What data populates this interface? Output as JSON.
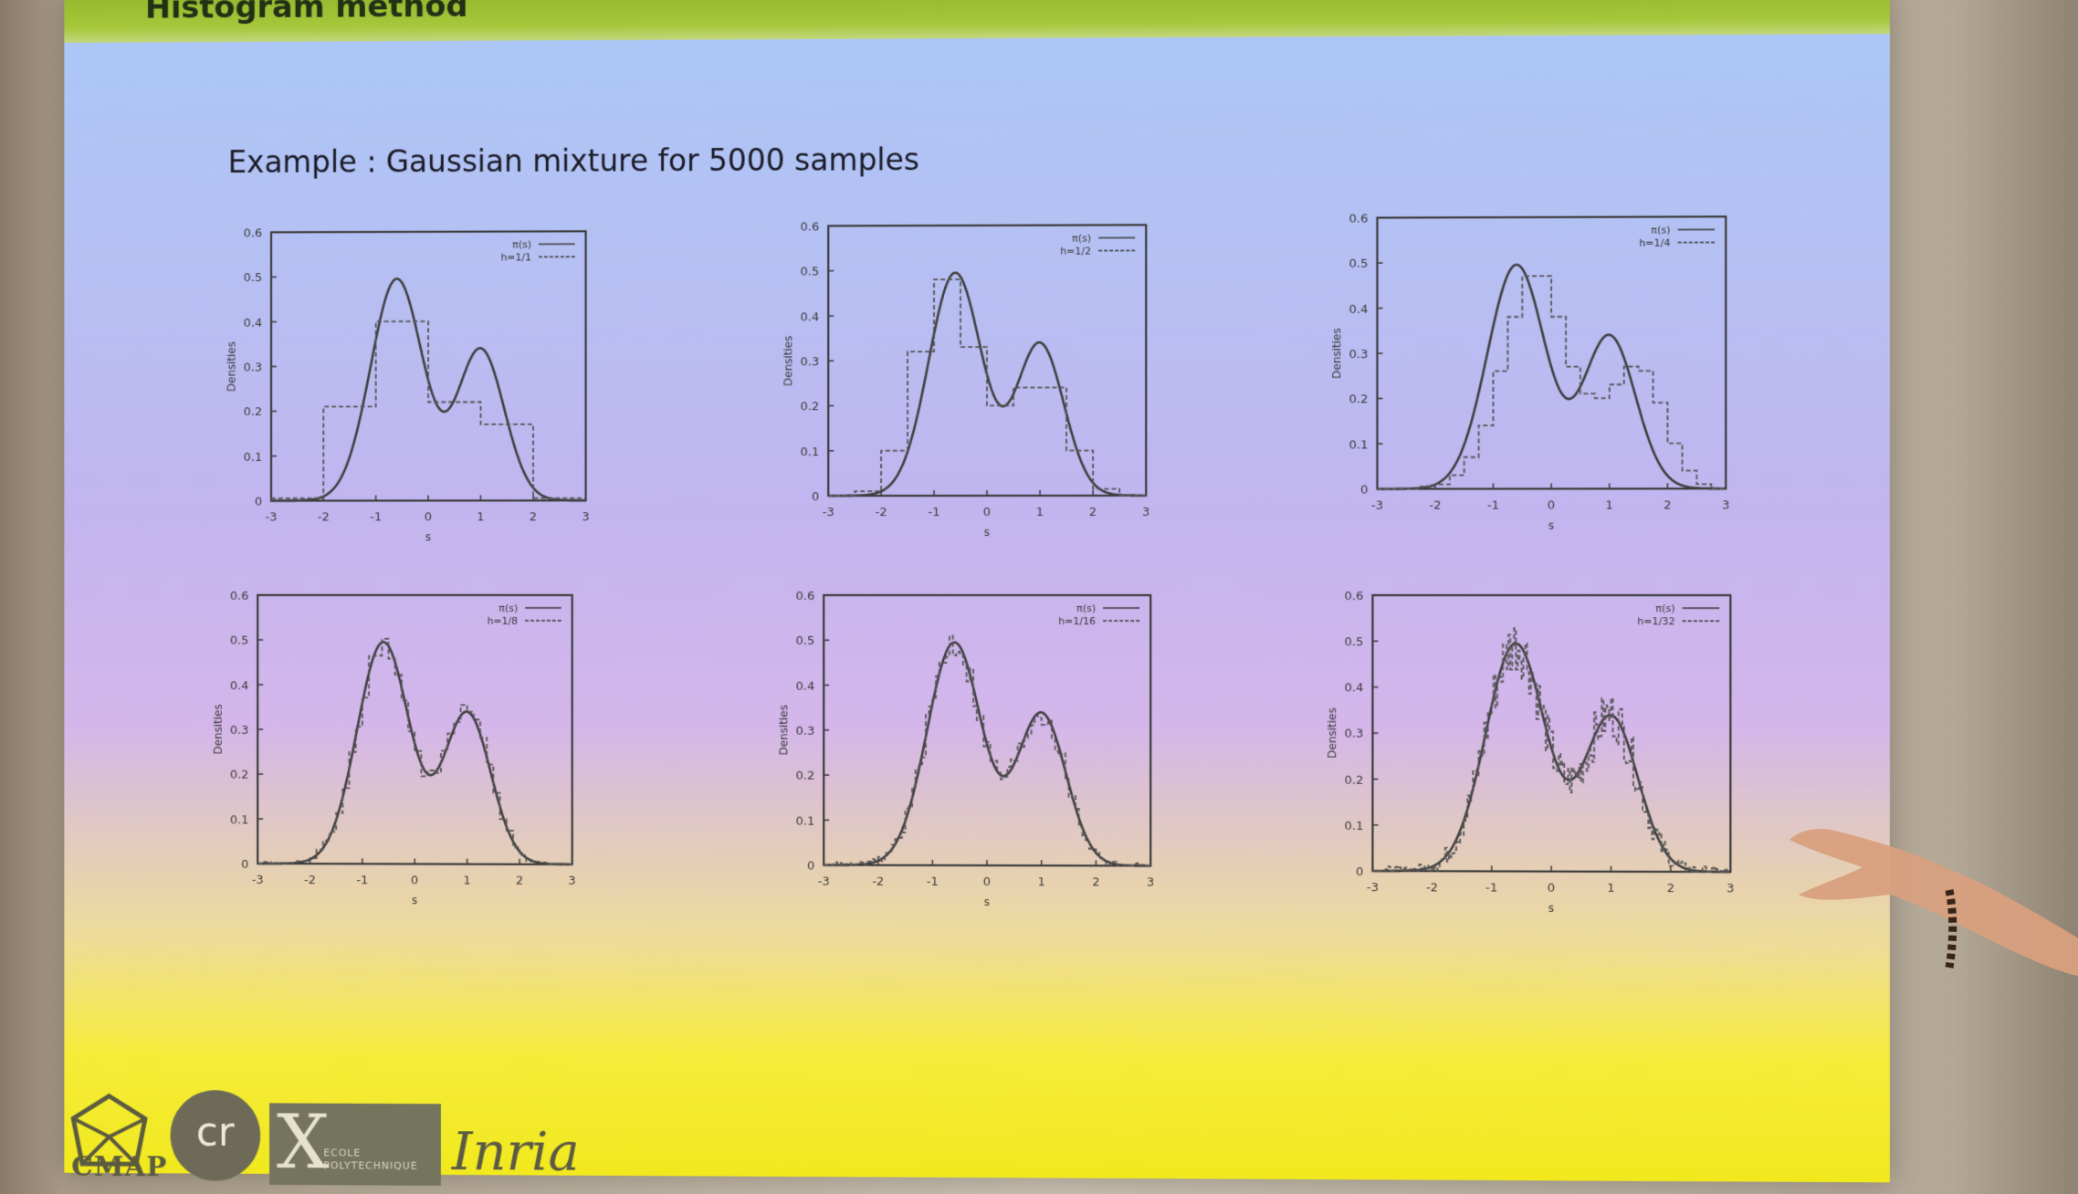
{
  "slide": {
    "title": "Histogram method",
    "subtitle": "Example : Gaussian mixture for 5000 samples"
  },
  "logos": {
    "cmap": "CMAP",
    "cnrs": "cr",
    "x_mark": "X",
    "polytechnique_line1": "ECOLE",
    "polytechnique_line2": "POLYTECHNIQUE",
    "inria": "Inria"
  },
  "colors": {
    "curve": "#3f3f3f",
    "histogram": "#555555",
    "axes": "#3a3a3a"
  },
  "chart_data": [
    {
      "type": "line",
      "title": "",
      "xlabel": "s",
      "ylabel": "Densities",
      "xlim": [
        -3,
        3
      ],
      "ylim": [
        0,
        0.6
      ],
      "xticks": [
        -3,
        -2,
        -1,
        0,
        1,
        2,
        3
      ],
      "yticks": [
        0,
        0.1,
        0.2,
        0.3,
        0.4,
        0.5,
        0.6
      ],
      "legend_position": "top-right",
      "series": [
        {
          "name": "π(s)",
          "style": "solid",
          "kind": "curve"
        },
        {
          "name": "h=1/1",
          "style": "dashed",
          "kind": "histogram",
          "bin_width": 1,
          "bin_start": -3,
          "values": [
            0.005,
            0.21,
            0.4,
            0.22,
            0.17,
            0.005
          ]
        }
      ]
    },
    {
      "type": "line",
      "title": "",
      "xlabel": "s",
      "ylabel": "Densities",
      "xlim": [
        -3,
        3
      ],
      "ylim": [
        0,
        0.6
      ],
      "xticks": [
        -3,
        -2,
        -1,
        0,
        1,
        2,
        3
      ],
      "yticks": [
        0,
        0.1,
        0.2,
        0.3,
        0.4,
        0.5,
        0.6
      ],
      "legend_position": "top-right",
      "series": [
        {
          "name": "π(s)",
          "style": "solid",
          "kind": "curve"
        },
        {
          "name": "h=1/2",
          "style": "dashed",
          "kind": "histogram",
          "bin_width": 0.5,
          "bin_start": -3,
          "values": [
            0.0,
            0.01,
            0.1,
            0.32,
            0.48,
            0.33,
            0.2,
            0.24,
            0.24,
            0.1,
            0.015,
            0.0
          ]
        }
      ]
    },
    {
      "type": "line",
      "title": "",
      "xlabel": "s",
      "ylabel": "Densities",
      "xlim": [
        -3,
        3
      ],
      "ylim": [
        0,
        0.6
      ],
      "xticks": [
        -3,
        -2,
        -1,
        0,
        1,
        2,
        3
      ],
      "yticks": [
        0,
        0.1,
        0.2,
        0.3,
        0.4,
        0.5,
        0.6
      ],
      "legend_position": "top-right",
      "series": [
        {
          "name": "π(s)",
          "style": "solid",
          "kind": "curve"
        },
        {
          "name": "h=1/4",
          "style": "dashed",
          "kind": "histogram",
          "bin_width": 0.25,
          "bin_start": -3,
          "values": [
            0,
            0,
            0,
            0.005,
            0.01,
            0.03,
            0.07,
            0.14,
            0.26,
            0.38,
            0.47,
            0.47,
            0.38,
            0.27,
            0.21,
            0.2,
            0.23,
            0.27,
            0.26,
            0.19,
            0.1,
            0.04,
            0.01,
            0
          ]
        }
      ]
    },
    {
      "type": "line",
      "title": "",
      "xlabel": "s",
      "ylabel": "Densities",
      "xlim": [
        -3,
        3
      ],
      "ylim": [
        0,
        0.6
      ],
      "xticks": [
        -3,
        -2,
        -1,
        0,
        1,
        2,
        3
      ],
      "yticks": [
        0,
        0.1,
        0.2,
        0.3,
        0.4,
        0.5,
        0.6
      ],
      "legend_position": "top-right",
      "series": [
        {
          "name": "π(s)",
          "style": "solid",
          "kind": "curve"
        },
        {
          "name": "h=1/8",
          "style": "dashed",
          "kind": "histogram",
          "bin_width": 0.125,
          "noise": 0.02,
          "seed": 8
        }
      ]
    },
    {
      "type": "line",
      "title": "",
      "xlabel": "s",
      "ylabel": "Densities",
      "xlim": [
        -3,
        3
      ],
      "ylim": [
        0,
        0.6
      ],
      "xticks": [
        -3,
        -2,
        -1,
        0,
        1,
        2,
        3
      ],
      "yticks": [
        0,
        0.1,
        0.2,
        0.3,
        0.4,
        0.5,
        0.6
      ],
      "legend_position": "top-right",
      "series": [
        {
          "name": "π(s)",
          "style": "solid",
          "kind": "curve"
        },
        {
          "name": "h=1/16",
          "style": "dashed",
          "kind": "histogram",
          "bin_width": 0.0625,
          "noise": 0.03,
          "seed": 16
        }
      ]
    },
    {
      "type": "line",
      "title": "",
      "xlabel": "s",
      "ylabel": "Densities",
      "xlim": [
        -3,
        3
      ],
      "ylim": [
        0,
        0.6
      ],
      "xticks": [
        -3,
        -2,
        -1,
        0,
        1,
        2,
        3
      ],
      "yticks": [
        0,
        0.1,
        0.2,
        0.3,
        0.4,
        0.5,
        0.6
      ],
      "legend_position": "top-right",
      "series": [
        {
          "name": "π(s)",
          "style": "solid",
          "kind": "curve"
        },
        {
          "name": "h=1/32",
          "style": "dashed",
          "kind": "histogram",
          "bin_width": 0.03125,
          "noise": 0.05,
          "seed": 32
        }
      ]
    }
  ]
}
